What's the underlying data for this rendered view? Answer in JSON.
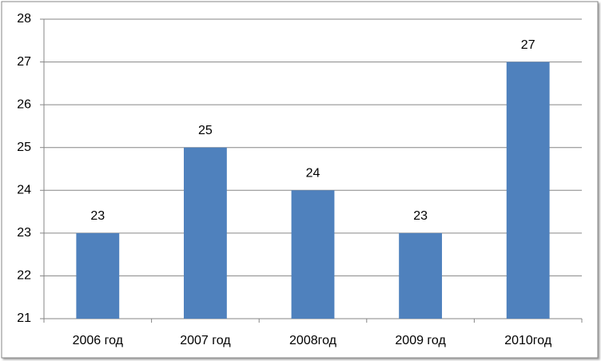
{
  "chart_data": {
    "type": "bar",
    "categories": [
      "2006 год",
      "2007 год",
      "2008год",
      "2009 год",
      "2010год"
    ],
    "values": [
      23,
      25,
      24,
      23,
      27
    ],
    "color": "#4f81bd",
    "ylim": [
      21,
      28
    ],
    "yticks": [
      21,
      22,
      23,
      24,
      25,
      26,
      27,
      28
    ],
    "grid": true
  }
}
